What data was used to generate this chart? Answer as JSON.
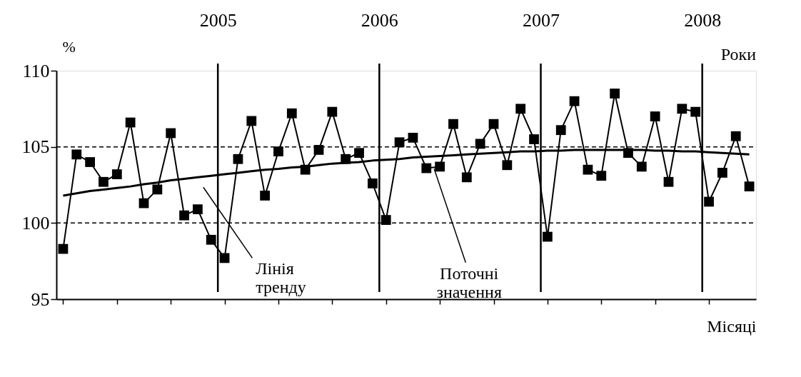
{
  "chart_data": {
    "type": "line",
    "ylabel": "%",
    "xlabel": "Місяці",
    "categories": [
      null,
      null,
      null,
      null,
      null,
      null,
      null,
      null,
      null,
      null,
      null,
      null,
      null,
      null,
      null,
      null,
      null,
      null,
      null,
      null,
      null,
      null,
      null,
      null,
      null,
      null,
      null,
      null,
      null,
      null,
      null,
      null,
      null,
      null,
      null,
      null,
      null,
      null,
      null,
      null,
      null,
      null,
      null,
      null,
      null,
      null,
      null,
      null,
      null,
      null,
      null,
      null
    ],
    "series": [
      {
        "color": "#000000",
        "marker": "square",
        "values": [
          98.3,
          104.5,
          104.0,
          102.7,
          103.2,
          106.6,
          101.3,
          102.2,
          105.9,
          100.5,
          100.9,
          98.9,
          97.7,
          104.2,
          106.7,
          101.8,
          104.7,
          107.2,
          103.5,
          104.8,
          107.3,
          104.2,
          104.6,
          102.6,
          100.2,
          105.3,
          105.6,
          103.6,
          103.7,
          106.5,
          103.0,
          105.2,
          106.5,
          103.8,
          107.5,
          105.5,
          99.1,
          106.1,
          108.0,
          103.5,
          103.1,
          108.5,
          104.6,
          103.7,
          107.0,
          102.7,
          107.5,
          107.3,
          101.4,
          103.3,
          105.7,
          102.4
        ]
      },
      {
        "color": "#000000",
        "marker": "none",
        "values": [
          101.8,
          101.95,
          102.1,
          102.2,
          102.3,
          102.4,
          102.55,
          102.65,
          102.8,
          102.9,
          103.0,
          103.1,
          103.2,
          103.3,
          103.4,
          103.5,
          103.55,
          103.65,
          103.7,
          103.8,
          103.9,
          103.95,
          104.0,
          104.1,
          104.15,
          104.2,
          104.3,
          104.35,
          104.4,
          104.45,
          104.5,
          104.55,
          104.6,
          104.65,
          104.7,
          104.7,
          104.75,
          104.75,
          104.8,
          104.8,
          104.8,
          104.8,
          104.8,
          104.8,
          104.75,
          104.75,
          104.7,
          104.7,
          104.65,
          104.6,
          104.55,
          104.5
        ]
      }
    ],
    "ylim": [
      95,
      110
    ],
    "yticks": [
      95,
      100,
      105,
      110
    ],
    "x2lim": [
      2004,
      2008.333
    ],
    "x2ticks": [
      2005,
      2006,
      2007,
      2008
    ],
    "grid": false,
    "ref_lines": [
      {
        "axis": "x2",
        "value": 2005,
        "color": "#000000",
        "line_style": "solid"
      },
      {
        "axis": "x2",
        "value": 2006,
        "color": "#000000",
        "line_style": "solid"
      },
      {
        "axis": "x2",
        "value": 2007,
        "color": "#000000",
        "line_style": "solid"
      },
      {
        "axis": "x2",
        "value": 2008,
        "color": "#000000",
        "line_style": "solid"
      },
      {
        "axis": "y",
        "value": 100,
        "color": "#000000",
        "line_style": "dashed"
      },
      {
        "axis": "y",
        "value": 105,
        "color": "#000000",
        "line_style": "dashed"
      }
    ],
    "annotations": [
      "Лінія тренду",
      "Поточні значення",
      "Роки"
    ]
  }
}
